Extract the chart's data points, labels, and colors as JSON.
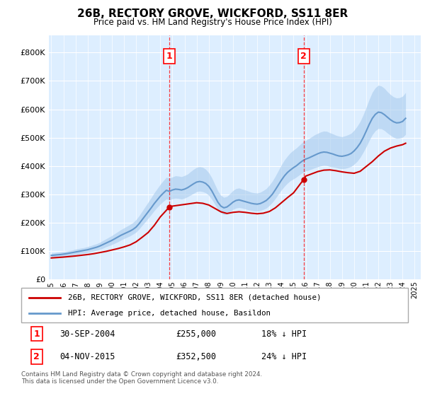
{
  "title": "26B, RECTORY GROVE, WICKFORD, SS11 8ER",
  "subtitle": "Price paid vs. HM Land Registry's House Price Index (HPI)",
  "ytick_values": [
    0,
    100000,
    200000,
    300000,
    400000,
    500000,
    600000,
    700000,
    800000
  ],
  "ylim": [
    0,
    860000
  ],
  "xlim_start": 1994.8,
  "xlim_end": 2025.5,
  "sale1_x": 2004.75,
  "sale1_y": 255000,
  "sale1_label": "1",
  "sale1_date": "30-SEP-2004",
  "sale1_price": "£255,000",
  "sale1_hpi": "18% ↓ HPI",
  "sale2_x": 2015.84,
  "sale2_y": 352500,
  "sale2_label": "2",
  "sale2_date": "04-NOV-2015",
  "sale2_price": "£352,500",
  "sale2_hpi": "24% ↓ HPI",
  "red_line_color": "#cc0000",
  "blue_line_color": "#6699cc",
  "blue_fill_color": "#aaccee",
  "plot_bg_color": "#ddeeff",
  "legend_label_red": "26B, RECTORY GROVE, WICKFORD, SS11 8ER (detached house)",
  "legend_label_blue": "HPI: Average price, detached house, Basildon",
  "footnote": "Contains HM Land Registry data © Crown copyright and database right 2024.\nThis data is licensed under the Open Government Licence v3.0.",
  "hpi_years": [
    1995.0,
    1995.25,
    1995.5,
    1995.75,
    1996.0,
    1996.25,
    1996.5,
    1996.75,
    1997.0,
    1997.25,
    1997.5,
    1997.75,
    1998.0,
    1998.25,
    1998.5,
    1998.75,
    1999.0,
    1999.25,
    1999.5,
    1999.75,
    2000.0,
    2000.25,
    2000.5,
    2000.75,
    2001.0,
    2001.25,
    2001.5,
    2001.75,
    2002.0,
    2002.25,
    2002.5,
    2002.75,
    2003.0,
    2003.25,
    2003.5,
    2003.75,
    2004.0,
    2004.25,
    2004.5,
    2004.75,
    2005.0,
    2005.25,
    2005.5,
    2005.75,
    2006.0,
    2006.25,
    2006.5,
    2006.75,
    2007.0,
    2007.25,
    2007.5,
    2007.75,
    2008.0,
    2008.25,
    2008.5,
    2008.75,
    2009.0,
    2009.25,
    2009.5,
    2009.75,
    2010.0,
    2010.25,
    2010.5,
    2010.75,
    2011.0,
    2011.25,
    2011.5,
    2011.75,
    2012.0,
    2012.25,
    2012.5,
    2012.75,
    2013.0,
    2013.25,
    2013.5,
    2013.75,
    2014.0,
    2014.25,
    2014.5,
    2014.75,
    2015.0,
    2015.25,
    2015.5,
    2015.75,
    2016.0,
    2016.25,
    2016.5,
    2016.75,
    2017.0,
    2017.25,
    2017.5,
    2017.75,
    2018.0,
    2018.25,
    2018.5,
    2018.75,
    2019.0,
    2019.25,
    2019.5,
    2019.75,
    2020.0,
    2020.25,
    2020.5,
    2020.75,
    2021.0,
    2021.25,
    2021.5,
    2021.75,
    2022.0,
    2022.25,
    2022.5,
    2022.75,
    2023.0,
    2023.25,
    2023.5,
    2023.75,
    2024.0,
    2024.25
  ],
  "hpi_values": [
    84000,
    85000,
    86000,
    87000,
    88500,
    90000,
    92000,
    94000,
    96000,
    98000,
    100000,
    102000,
    104000,
    107000,
    110000,
    113000,
    117000,
    122000,
    127000,
    132000,
    137000,
    143000,
    149000,
    155000,
    160000,
    165000,
    170000,
    176000,
    184000,
    196000,
    210000,
    224000,
    238000,
    252000,
    267000,
    280000,
    293000,
    304000,
    314000,
    310000,
    315000,
    318000,
    317000,
    315000,
    318000,
    323000,
    330000,
    337000,
    343000,
    345000,
    343000,
    338000,
    328000,
    312000,
    292000,
    272000,
    258000,
    252000,
    255000,
    263000,
    272000,
    278000,
    280000,
    277000,
    274000,
    271000,
    268000,
    266000,
    265000,
    267000,
    272000,
    278000,
    288000,
    300000,
    316000,
    333000,
    350000,
    365000,
    377000,
    386000,
    394000,
    401000,
    410000,
    418000,
    424000,
    428000,
    433000,
    438000,
    443000,
    447000,
    449000,
    448000,
    445000,
    442000,
    438000,
    435000,
    434000,
    436000,
    439000,
    444000,
    453000,
    465000,
    480000,
    500000,
    523000,
    547000,
    568000,
    582000,
    590000,
    588000,
    581000,
    572000,
    563000,
    556000,
    552000,
    553000,
    557000,
    568000
  ],
  "hpi_upper": [
    92000,
    93000,
    95000,
    96000,
    97500,
    99000,
    101000,
    103000,
    106000,
    108000,
    110000,
    112000,
    115000,
    118000,
    122000,
    125000,
    130000,
    136000,
    142000,
    148000,
    154000,
    161000,
    168000,
    175000,
    181000,
    187000,
    193000,
    200000,
    210000,
    224000,
    240000,
    256000,
    272000,
    288000,
    305000,
    320000,
    335000,
    348000,
    360000,
    356000,
    361000,
    365000,
    364000,
    362000,
    366000,
    371000,
    380000,
    388000,
    395000,
    397000,
    395000,
    388000,
    376000,
    358000,
    335000,
    312000,
    296000,
    289000,
    292000,
    302000,
    313000,
    320000,
    322000,
    318000,
    315000,
    311000,
    307000,
    305000,
    304000,
    307000,
    313000,
    320000,
    332000,
    346000,
    364000,
    384000,
    404000,
    421000,
    435000,
    447000,
    456000,
    464000,
    474000,
    484000,
    490000,
    496000,
    503000,
    510000,
    515000,
    520000,
    523000,
    522000,
    517000,
    513000,
    508000,
    505000,
    503000,
    506000,
    510000,
    515000,
    526000,
    540000,
    557000,
    580000,
    607000,
    635000,
    660000,
    676000,
    685000,
    682000,
    674000,
    662000,
    652000,
    644000,
    640000,
    641000,
    646000,
    659000
  ],
  "hpi_lower": [
    76000,
    77000,
    78000,
    79000,
    80000,
    81000,
    83000,
    85000,
    87000,
    89000,
    91000,
    93000,
    94000,
    97000,
    99000,
    102000,
    105000,
    109000,
    114000,
    118000,
    122000,
    127000,
    132000,
    138000,
    143000,
    148000,
    153000,
    159000,
    166000,
    177000,
    190000,
    202000,
    215000,
    228000,
    242000,
    254000,
    265000,
    275000,
    283000,
    280000,
    284000,
    286000,
    285000,
    283000,
    286000,
    291000,
    297000,
    303000,
    309000,
    311000,
    309000,
    305000,
    296000,
    282000,
    265000,
    247000,
    234000,
    228000,
    231000,
    238000,
    246000,
    251000,
    253000,
    251000,
    248000,
    245000,
    243000,
    241000,
    240000,
    242000,
    246000,
    251000,
    260000,
    271000,
    285000,
    300000,
    315000,
    328000,
    339000,
    348000,
    354000,
    361000,
    369000,
    376000,
    382000,
    385000,
    389000,
    393000,
    397000,
    400000,
    402000,
    401000,
    398000,
    396000,
    394000,
    391000,
    390000,
    391000,
    394000,
    398000,
    406000,
    416000,
    430000,
    448000,
    468000,
    490000,
    510000,
    524000,
    532000,
    531000,
    525000,
    516000,
    508000,
    501000,
    497000,
    498000,
    501000,
    511000
  ],
  "red_years": [
    1995.0,
    1995.5,
    1996.0,
    1996.5,
    1997.0,
    1997.5,
    1998.0,
    1998.5,
    1999.0,
    1999.5,
    2000.0,
    2000.5,
    2001.0,
    2001.5,
    2002.0,
    2002.5,
    2003.0,
    2003.5,
    2004.0,
    2004.75,
    2005.0,
    2005.5,
    2006.0,
    2006.5,
    2007.0,
    2007.5,
    2008.0,
    2008.5,
    2009.0,
    2009.5,
    2010.0,
    2010.5,
    2011.0,
    2011.5,
    2012.0,
    2012.5,
    2013.0,
    2013.5,
    2014.0,
    2014.5,
    2015.0,
    2015.84,
    2016.0,
    2016.5,
    2017.0,
    2017.5,
    2018.0,
    2018.5,
    2019.0,
    2019.5,
    2020.0,
    2020.5,
    2021.0,
    2021.5,
    2022.0,
    2022.5,
    2023.0,
    2023.5,
    2024.0,
    2024.25
  ],
  "red_values": [
    75000,
    76500,
    78000,
    80000,
    82000,
    84500,
    87000,
    90000,
    94000,
    98000,
    103000,
    108000,
    114000,
    121000,
    132000,
    148000,
    165000,
    190000,
    220000,
    255000,
    258000,
    261000,
    264000,
    267000,
    270000,
    268000,
    262000,
    250000,
    238000,
    232000,
    236000,
    238000,
    236000,
    233000,
    231000,
    233000,
    239000,
    252000,
    270000,
    288000,
    305000,
    352500,
    364000,
    372000,
    380000,
    385000,
    386000,
    383000,
    379000,
    376000,
    374000,
    381000,
    398000,
    415000,
    435000,
    452000,
    463000,
    470000,
    475000,
    480000
  ]
}
